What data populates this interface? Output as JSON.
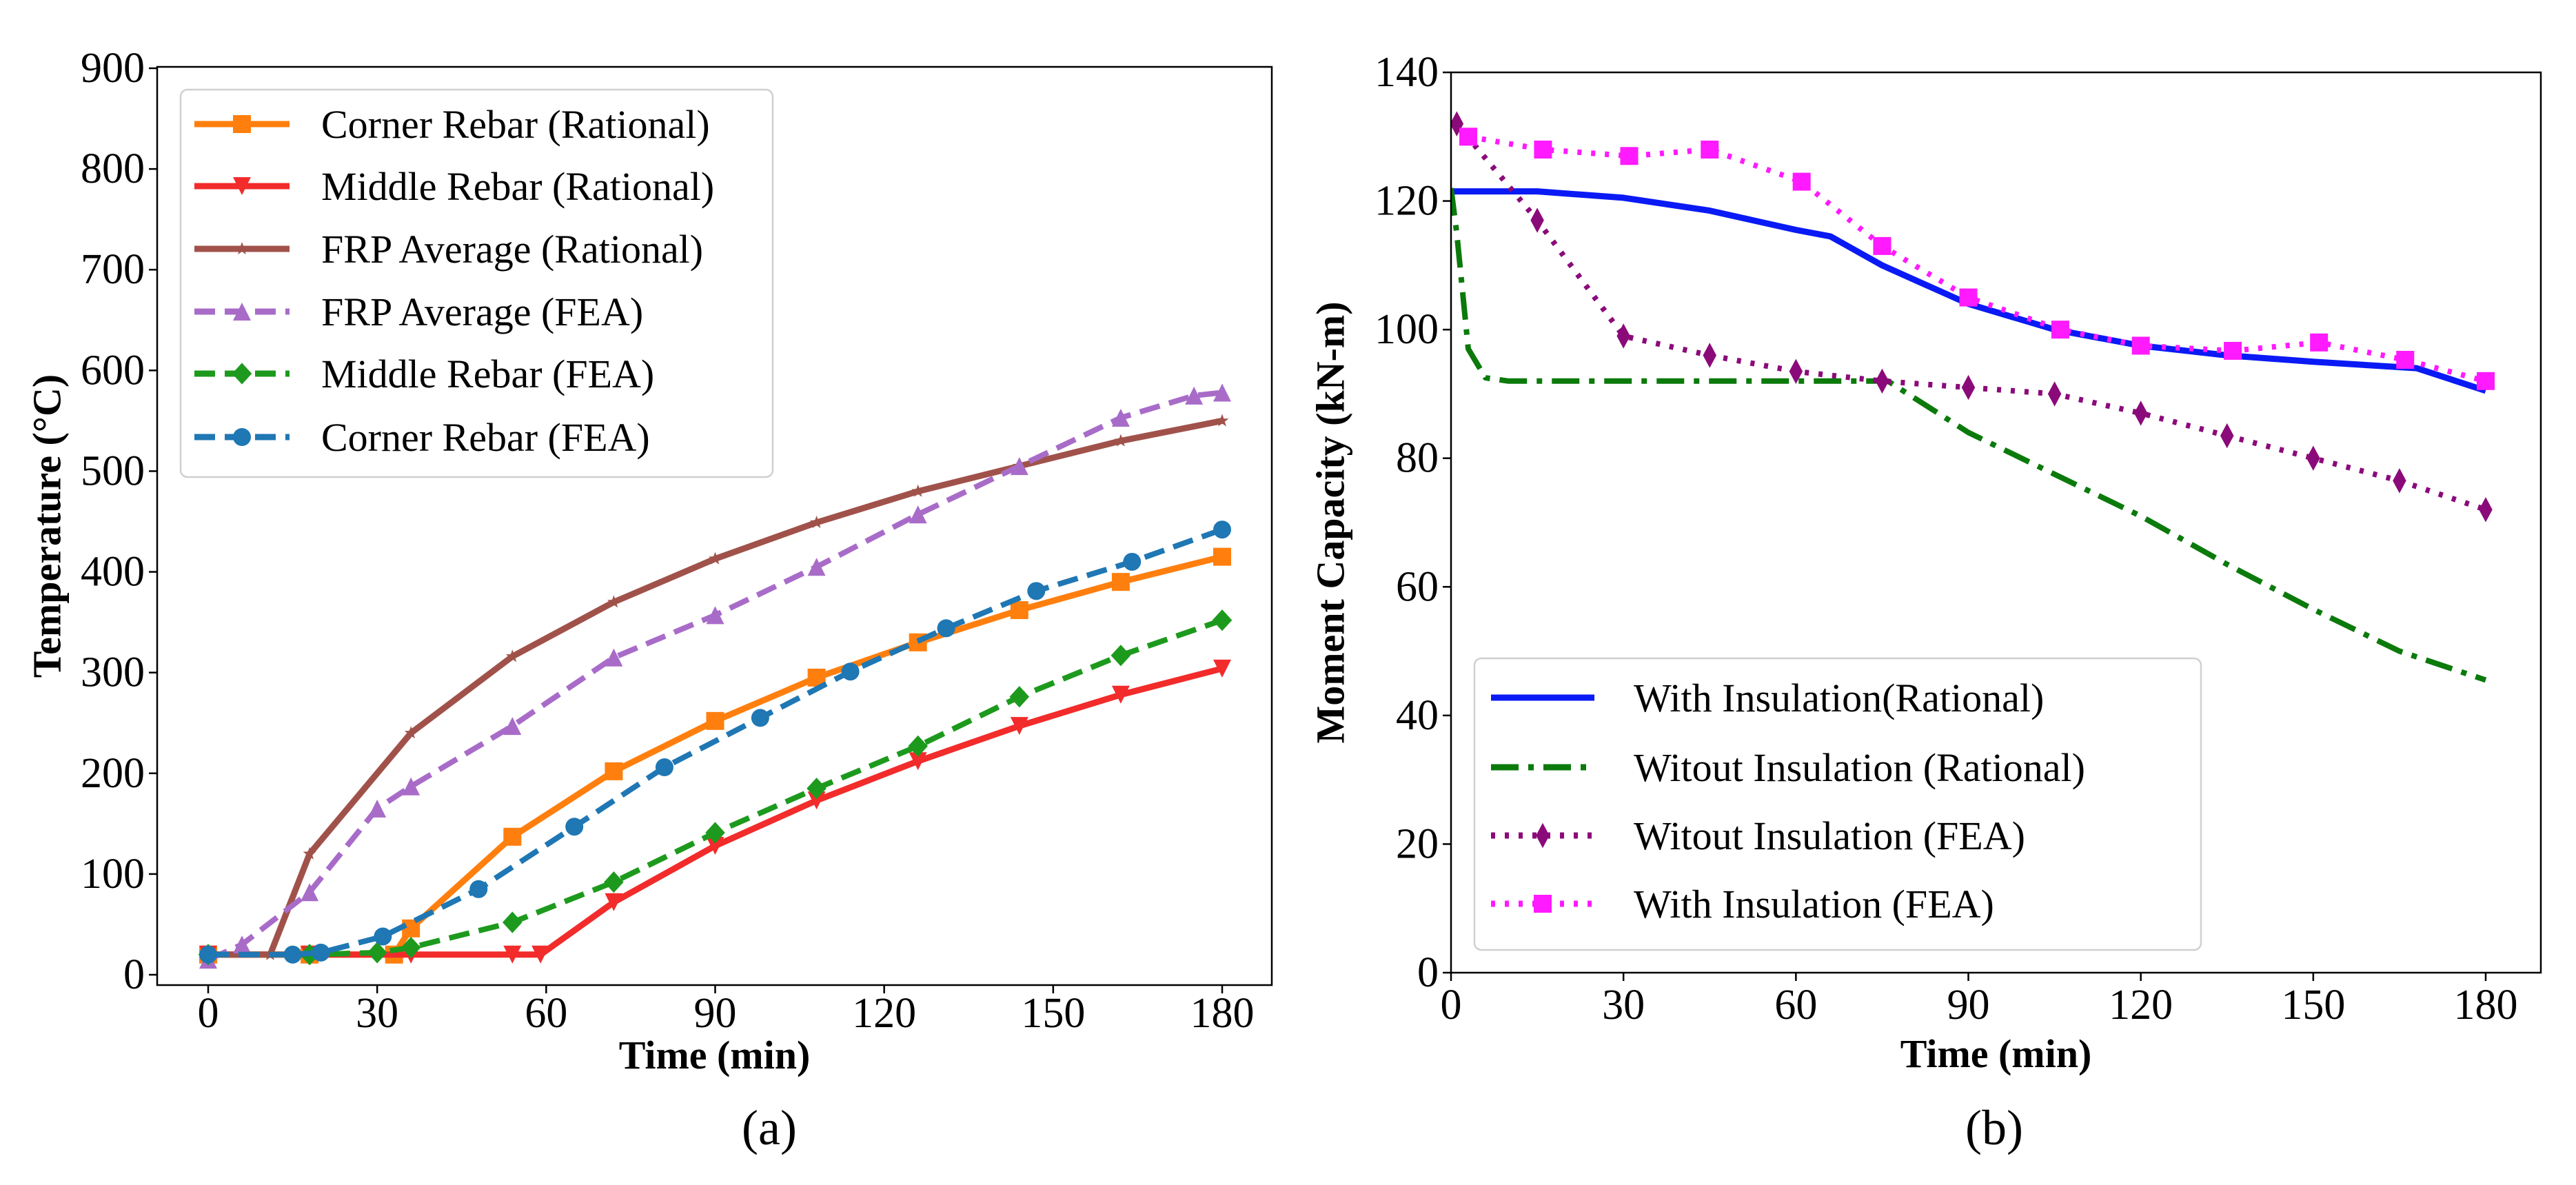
{
  "chart_data": [
    {
      "type": "line",
      "panel_label": "(a)",
      "xlabel": "Time (min)",
      "ylabel": "Temperature (°C)",
      "xlim": [
        -10,
        185
      ],
      "ylim": [
        -10,
        900
      ],
      "xticks": [
        0,
        30,
        60,
        90,
        120,
        150,
        180
      ],
      "yticks": [
        0,
        100,
        200,
        300,
        400,
        500,
        600,
        700,
        800,
        900
      ],
      "grid": false,
      "legend_position": "top-left",
      "series": [
        {
          "name": "Corner Rebar (Rational)",
          "color": "#ff7f0e",
          "style": "solid",
          "marker": "square",
          "x": [
            0,
            18,
            33,
            36,
            54,
            72,
            90,
            108,
            126,
            144,
            162,
            180
          ],
          "y": [
            20,
            20,
            20,
            46,
            137,
            202,
            252,
            295,
            330,
            362,
            390,
            415
          ]
        },
        {
          "name": "Middle Rebar (Rational)",
          "color": "#f22b2b",
          "style": "solid",
          "marker": "triangle-down",
          "x": [
            0,
            18,
            36,
            54,
            59,
            72,
            90,
            108,
            126,
            144,
            162,
            180
          ],
          "y": [
            20,
            20,
            20,
            20,
            20,
            72,
            128,
            173,
            212,
            247,
            278,
            304
          ]
        },
        {
          "name": "FRP Average (Rational)",
          "color": "#a0524a",
          "style": "solid",
          "marker": "star",
          "x": [
            0,
            11,
            18,
            36,
            54,
            72,
            90,
            108,
            126,
            144,
            162,
            180
          ],
          "y": [
            20,
            20,
            120,
            240,
            316,
            370,
            413,
            449,
            480,
            505,
            530,
            550
          ]
        },
        {
          "name": "FRP Average (FEA)",
          "color": "#a86cc8",
          "style": "dashed",
          "marker": "triangle-up",
          "x": [
            0,
            6,
            18,
            30,
            36,
            54,
            72,
            90,
            108,
            126,
            144,
            162,
            175,
            180
          ],
          "y": [
            15,
            30,
            82,
            165,
            187,
            247,
            315,
            357,
            405,
            457,
            505,
            553,
            575,
            578
          ]
        },
        {
          "name": "Middle Rebar (FEA)",
          "color": "#1d9a1d",
          "style": "dashed",
          "marker": "diamond",
          "x": [
            0,
            18,
            30,
            36,
            54,
            72,
            90,
            108,
            126,
            144,
            162,
            180
          ],
          "y": [
            20,
            20,
            22,
            27,
            52,
            92,
            141,
            185,
            227,
            276,
            317,
            352
          ]
        },
        {
          "name": "Corner Rebar (FEA)",
          "color": "#1f77b4",
          "style": "dashed",
          "marker": "circle",
          "x": [
            0,
            15,
            20,
            31,
            48,
            65,
            81,
            98,
            114,
            131,
            147,
            164,
            180
          ],
          "y": [
            20,
            20,
            22,
            38,
            85,
            147,
            206,
            255,
            301,
            344,
            381,
            410,
            442
          ]
        }
      ]
    },
    {
      "type": "line",
      "panel_label": "(b)",
      "xlabel": "Time (min)",
      "ylabel": "Moment Capacity (kN-m)",
      "xlim": [
        0,
        190
      ],
      "ylim": [
        0,
        140
      ],
      "xticks": [
        0,
        30,
        60,
        90,
        120,
        150,
        180
      ],
      "yticks": [
        0,
        20,
        40,
        60,
        80,
        100,
        120,
        140
      ],
      "grid": false,
      "legend_position": "lower-left",
      "series": [
        {
          "name": "With Insulation(Rational)",
          "color": "#0a1af5",
          "style": "solid",
          "marker": "none",
          "x": [
            0,
            15,
            30,
            45,
            60,
            66,
            75,
            90,
            105,
            120,
            135,
            150,
            168,
            180
          ],
          "y": [
            121.5,
            121.5,
            120.5,
            118.5,
            115.5,
            114.5,
            110,
            104,
            100,
            97.5,
            96,
            95,
            94,
            90.5
          ]
        },
        {
          "name": "Witout Insulation (Rational)",
          "color": "#0b7a0b",
          "style": "dashdot",
          "marker": "none",
          "x": [
            0,
            1,
            3,
            6,
            10,
            30,
            60,
            76,
            90,
            105,
            120,
            135,
            150,
            165,
            180
          ],
          "y": [
            122,
            115,
            97,
            92.5,
            92,
            92,
            92,
            92,
            84,
            77.5,
            71,
            63.5,
            56.5,
            50,
            45.5
          ]
        },
        {
          "name": "Witout Insulation (FEA)",
          "color": "#8b0a7a",
          "style": "dotted",
          "marker": "thin-diamond",
          "x": [
            1,
            15,
            30,
            45,
            60,
            75,
            90,
            105,
            120,
            135,
            150,
            165,
            180
          ],
          "y": [
            132,
            117,
            99,
            96,
            93.5,
            92,
            91,
            90,
            87,
            83.5,
            80,
            76.5,
            72
          ]
        },
        {
          "name": "With Insulation (FEA)",
          "color": "#ff1aff",
          "style": "dotted",
          "marker": "square",
          "x": [
            3,
            16,
            31,
            45,
            61,
            75,
            90,
            106,
            120,
            136,
            151,
            166,
            180
          ],
          "y": [
            130,
            128,
            127,
            128,
            123,
            113,
            105,
            100,
            97.5,
            96.7,
            98,
            95.3,
            92
          ]
        }
      ]
    }
  ]
}
